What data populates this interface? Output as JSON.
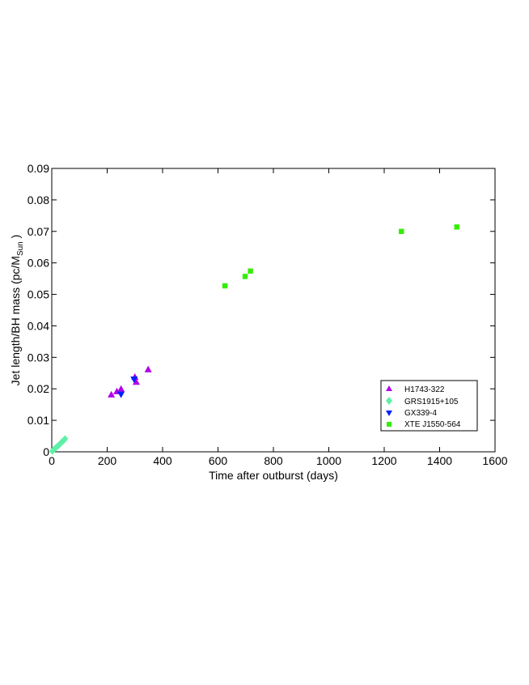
{
  "chart_data": {
    "type": "scatter",
    "xlabel": "Time after outburst (days)",
    "ylabel": "Jet length/BH mass (pc/M",
    "ylabel_sub": "Sun",
    "ylabel_tail": " )",
    "xlim": [
      0,
      1600
    ],
    "ylim": [
      0,
      0.09
    ],
    "xticks": [
      0,
      200,
      400,
      600,
      800,
      1000,
      1200,
      1400,
      1600
    ],
    "xtick_labels": [
      "0",
      "200",
      "400",
      "600",
      "800",
      "1000",
      "1200",
      "1400",
      "1600"
    ],
    "yticks": [
      0,
      0.01,
      0.02,
      0.03,
      0.04,
      0.05,
      0.06,
      0.07,
      0.08,
      0.09
    ],
    "ytick_labels": [
      "0",
      "0.01",
      "0.02",
      "0.03",
      "0.04",
      "0.05",
      "0.06",
      "0.07",
      "0.08",
      "0.09"
    ],
    "grid": false,
    "legend_position": "lower-right",
    "series": [
      {
        "name": "H1743-322",
        "marker": "triangle-up",
        "color": "#b000e8",
        "points": [
          [
            215,
            0.0182
          ],
          [
            235,
            0.0192
          ],
          [
            250,
            0.02
          ],
          [
            300,
            0.0238
          ],
          [
            305,
            0.0222
          ],
          [
            348,
            0.0262
          ]
        ]
      },
      {
        "name": "GRS1915+105",
        "marker": "diamond",
        "color": "#5ef0a8",
        "points": [
          [
            2,
            0.0002
          ],
          [
            5,
            0.0005
          ],
          [
            8,
            0.0008
          ],
          [
            12,
            0.0011
          ],
          [
            16,
            0.0014
          ],
          [
            20,
            0.0017
          ],
          [
            24,
            0.002
          ],
          [
            28,
            0.0023
          ],
          [
            32,
            0.0027
          ],
          [
            36,
            0.0031
          ],
          [
            40,
            0.0034
          ],
          [
            44,
            0.0037
          ],
          [
            48,
            0.0041
          ]
        ]
      },
      {
        "name": "GX339-4",
        "marker": "triangle-down",
        "color": "#0020ff",
        "points": [
          [
            250,
            0.0182
          ],
          [
            297,
            0.023
          ]
        ]
      },
      {
        "name": "XTE J1550-564",
        "marker": "square",
        "color": "#33ee00",
        "points": [
          [
            625,
            0.0527
          ],
          [
            698,
            0.0557
          ],
          [
            717,
            0.0574
          ],
          [
            1262,
            0.07
          ],
          [
            1462,
            0.0714
          ]
        ]
      }
    ]
  }
}
